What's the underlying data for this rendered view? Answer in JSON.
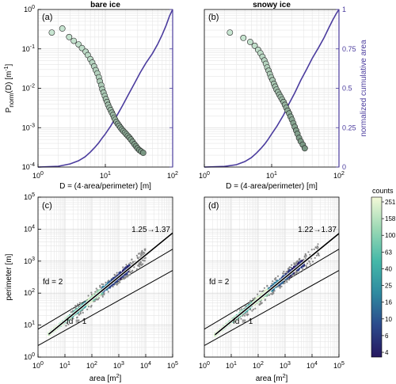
{
  "chart_data": [
    {
      "id": "a",
      "type": "scatter",
      "panel_label": "(a)",
      "title": "bare ice",
      "xlabel": "D = (4·area/perimeter) [m]",
      "ylabel": "P_norm(D) [m^-1]",
      "ylabel_parts": {
        "base": "P",
        "sub": "norm",
        "mid": "(D) [m",
        "sup": "-1",
        "end": "]"
      },
      "x_scale": "log",
      "y_scale": "log",
      "xlim": [
        1,
        100
      ],
      "ylim": [
        0.0001,
        1
      ],
      "xticks": [
        "10^0",
        "10^1",
        "10^2"
      ],
      "yticks": [
        "10^-4",
        "10^-3",
        "10^-2",
        "10^-1",
        "10^0"
      ],
      "right_axis": {
        "label": "",
        "ylim": [
          0,
          1
        ],
        "ticks": [
          "",
          "",
          "",
          "",
          ""
        ],
        "color": "#4b3c9e"
      },
      "grid": true,
      "series": [
        {
          "kind": "points",
          "x": [
            1.6,
            2.3,
            2.9,
            3.4,
            4.0,
            4.5,
            5.1,
            5.5,
            6.0,
            6.4,
            6.8,
            7.2,
            7.6,
            8.0,
            8.3,
            8.7,
            9.0,
            9.4,
            9.8,
            10.2,
            10.6,
            11.0,
            11.5,
            12.0,
            12.5,
            13.0,
            13.5,
            14.0,
            14.6,
            15.3,
            16.0,
            16.8,
            17.6,
            18.5,
            19.5,
            20.5,
            21.6,
            22.8,
            24.0,
            25.4,
            27.0,
            28.5,
            30.0,
            32.0,
            34.0,
            36.5
          ],
          "y": [
            0.26,
            0.33,
            0.2,
            0.16,
            0.13,
            0.105,
            0.085,
            0.07,
            0.055,
            0.045,
            0.036,
            0.029,
            0.024,
            0.019,
            0.015,
            0.012,
            0.0095,
            0.0078,
            0.0064,
            0.0053,
            0.0045,
            0.0038,
            0.0032,
            0.0028,
            0.0024,
            0.0021,
            0.0018,
            0.0016,
            0.0014,
            0.00125,
            0.00112,
            0.001,
            0.0009,
            0.00082,
            0.00075,
            0.00068,
            0.00062,
            0.00056,
            0.0005,
            0.00044,
            0.00038,
            0.00034,
            0.0003,
            0.00027,
            0.00025,
            0.00023
          ]
        },
        {
          "kind": "line",
          "name": "normalized cumulative area",
          "x": [
            1,
            2,
            3,
            4,
            5,
            6,
            7,
            8,
            9,
            10,
            12,
            15,
            18,
            22,
            27,
            33,
            40,
            50,
            60,
            70,
            80,
            90,
            100
          ],
          "y": [
            0.0,
            0.005,
            0.02,
            0.04,
            0.065,
            0.095,
            0.125,
            0.155,
            0.185,
            0.21,
            0.26,
            0.33,
            0.39,
            0.46,
            0.53,
            0.6,
            0.66,
            0.72,
            0.78,
            0.84,
            0.9,
            0.96,
            1.0
          ]
        }
      ]
    },
    {
      "id": "b",
      "type": "scatter",
      "panel_label": "(b)",
      "title": "snowy ice",
      "xlabel": "D = (4·area/perimeter) [m]",
      "ylabel": "",
      "x_scale": "log",
      "y_scale": "log",
      "xlim": [
        1,
        100
      ],
      "ylim": [
        0.0001,
        1
      ],
      "xticks": [
        "10^0",
        "10^1",
        "10^2"
      ],
      "right_axis": {
        "label": "normalized cumulative area",
        "ylim": [
          0,
          1
        ],
        "ticks": [
          "0",
          "0.25",
          "0.5",
          "0.75",
          "1"
        ],
        "color": "#4b3c9e"
      },
      "grid": true,
      "series": [
        {
          "kind": "points",
          "x": [
            2.4,
            3.8,
            4.8,
            5.6,
            6.3,
            6.8,
            7.3,
            7.8,
            8.2,
            8.6,
            9.0,
            9.4,
            9.8,
            10.3,
            10.8,
            11.3,
            11.8,
            12.4,
            13.0,
            13.6,
            14.3,
            15.0,
            15.7,
            16.5,
            17.3,
            18.2,
            19.1,
            20.0,
            21.0,
            22.0,
            23.1,
            24.2,
            25.5,
            27.0,
            29.0,
            31.0
          ],
          "y": [
            0.26,
            0.19,
            0.15,
            0.12,
            0.095,
            0.078,
            0.063,
            0.051,
            0.042,
            0.034,
            0.028,
            0.023,
            0.019,
            0.016,
            0.013,
            0.011,
            0.0093,
            0.008,
            0.0069,
            0.006,
            0.0052,
            0.0045,
            0.0038,
            0.0032,
            0.0027,
            0.0023,
            0.0019,
            0.0016,
            0.0013,
            0.00105,
            0.00085,
            0.0007,
            0.00055,
            0.00045,
            0.00037,
            0.0003
          ]
        },
        {
          "kind": "line",
          "name": "normalized cumulative area",
          "x": [
            1,
            2,
            3,
            4,
            5,
            6,
            7,
            8,
            9,
            10,
            12,
            15,
            18,
            22,
            27,
            33,
            40,
            50,
            60,
            70,
            80,
            90,
            100
          ],
          "y": [
            0.0,
            0.004,
            0.015,
            0.035,
            0.06,
            0.09,
            0.12,
            0.15,
            0.18,
            0.21,
            0.26,
            0.33,
            0.4,
            0.47,
            0.55,
            0.62,
            0.69,
            0.76,
            0.82,
            0.88,
            0.93,
            0.97,
            1.0
          ]
        }
      ]
    },
    {
      "id": "c",
      "type": "heatmap",
      "panel_label": "(c)",
      "title": "",
      "xlabel": "area [m^2]",
      "xlabel_parts": {
        "base": "area [m",
        "sup": "2",
        "end": "]"
      },
      "ylabel": "perimeter [m]",
      "x_scale": "log",
      "y_scale": "log",
      "xlim": [
        1,
        100000
      ],
      "ylim": [
        1,
        100000
      ],
      "xticks": [
        "10^0",
        "10^1",
        "10^2",
        "10^3",
        "10^4",
        "10^5"
      ],
      "yticks": [
        "10^0",
        "10^1",
        "10^2",
        "10^3",
        "10^4",
        "10^5"
      ],
      "grid": true,
      "annotations": [
        "fd = 2",
        "fd = 1",
        "1.25→1.37"
      ],
      "reference_lines": [
        {
          "label": "fd = 2",
          "x": [
            1,
            100000
          ],
          "y": [
            7.5,
            2370
          ]
        },
        {
          "label": "fd = 1",
          "x": [
            1,
            100000
          ],
          "y": [
            2.3,
            513
          ]
        }
      ],
      "fit_line": {
        "label": "1.25→1.37",
        "x": [
          2.5,
          100000
        ],
        "y": [
          5.2,
          7600
        ]
      },
      "density": {
        "x_range": [
          2.5,
          10000
        ],
        "core_x": 120
      }
    },
    {
      "id": "d",
      "type": "heatmap",
      "panel_label": "(d)",
      "title": "",
      "xlabel": "area [m^2]",
      "xlabel_parts": {
        "base": "area [m",
        "sup": "2",
        "end": "]"
      },
      "ylabel": "",
      "x_scale": "log",
      "y_scale": "log",
      "xlim": [
        1,
        100000
      ],
      "ylim": [
        1,
        100000
      ],
      "xticks": [
        "10^0",
        "10^1",
        "10^2",
        "10^3",
        "10^4",
        "10^5"
      ],
      "grid": true,
      "annotations": [
        "fd = 2",
        "fd = 1",
        "1.22→1.37"
      ],
      "reference_lines": [
        {
          "label": "fd = 2",
          "x": [
            1,
            100000
          ],
          "y": [
            7.5,
            2370
          ]
        },
        {
          "label": "fd = 1",
          "x": [
            1,
            100000
          ],
          "y": [
            2.3,
            513
          ]
        }
      ],
      "fit_line": {
        "label": "1.22→1.37",
        "x": [
          2.5,
          100000
        ],
        "y": [
          5.0,
          7300
        ]
      },
      "density": {
        "x_range": [
          2.5,
          20000
        ],
        "core_x": 120
      },
      "colorbar": {
        "label": "counts",
        "ticks": [
          "251",
          "158",
          "100",
          "63",
          "40",
          "25",
          "16",
          "10",
          "6",
          "4"
        ]
      }
    }
  ]
}
